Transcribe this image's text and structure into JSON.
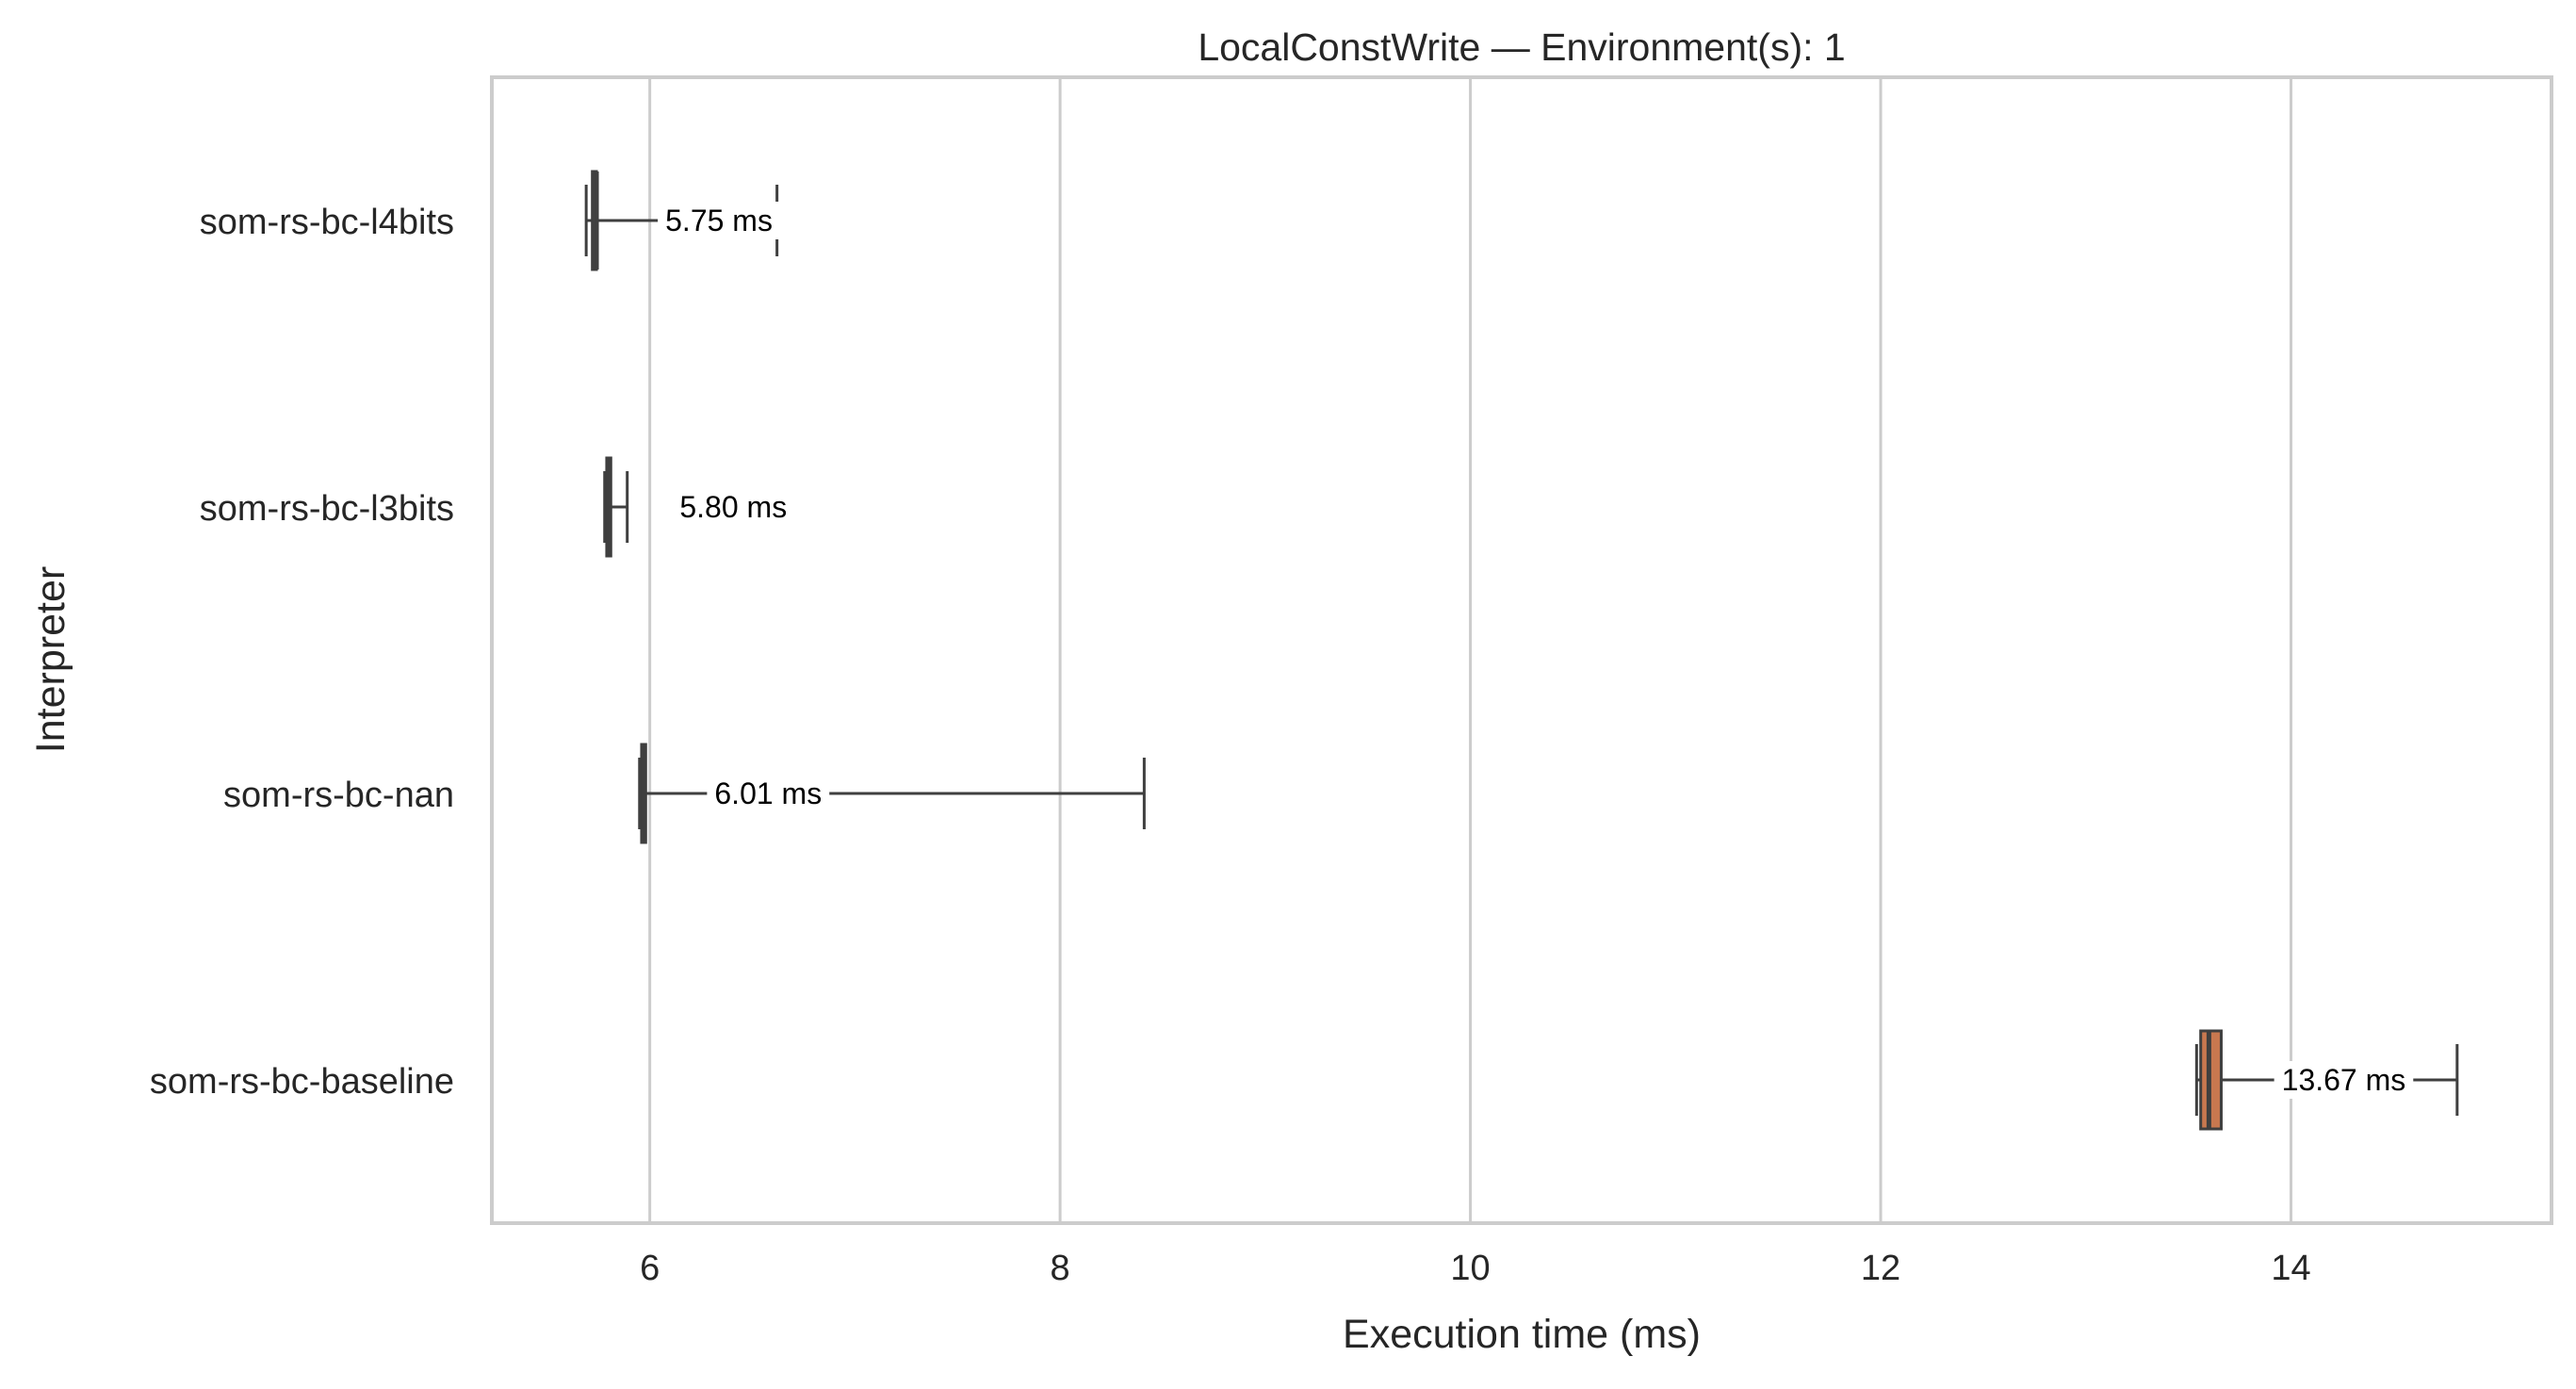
{
  "chart_data": {
    "type": "boxplot",
    "title": "LocalConstWrite — Environment(s): 1",
    "xlabel": "Execution time (ms)",
    "ylabel": "Interpreter",
    "xlim": [
      5.23,
      15.27
    ],
    "xticks": [
      6,
      8,
      10,
      12,
      14
    ],
    "grid": "vertical",
    "unit": "ms",
    "series": [
      {
        "name": "som-rs-bc-l4bits",
        "whisker_low": 5.69,
        "q1": 5.72,
        "median": 5.74,
        "q3": 5.74,
        "whisker_high": 6.62,
        "label": "5.75 ms",
        "color": "#4c4c4c"
      },
      {
        "name": "som-rs-bc-l3bits",
        "whisker_low": 5.78,
        "q1": 5.79,
        "median": 5.8,
        "q3": 5.81,
        "whisker_high": 5.89,
        "label": "5.80 ms",
        "color": "#4c4c4c"
      },
      {
        "name": "som-rs-bc-nan",
        "whisker_low": 5.95,
        "q1": 5.96,
        "median": 5.97,
        "q3": 5.98,
        "whisker_high": 8.41,
        "label": "6.01 ms",
        "color": "#4c4c4c"
      },
      {
        "name": "som-rs-bc-baseline",
        "whisker_low": 13.54,
        "q1": 13.56,
        "median": 13.6,
        "q3": 13.66,
        "whisker_high": 14.81,
        "label": "13.67 ms",
        "color": "#c8784f"
      }
    ]
  }
}
